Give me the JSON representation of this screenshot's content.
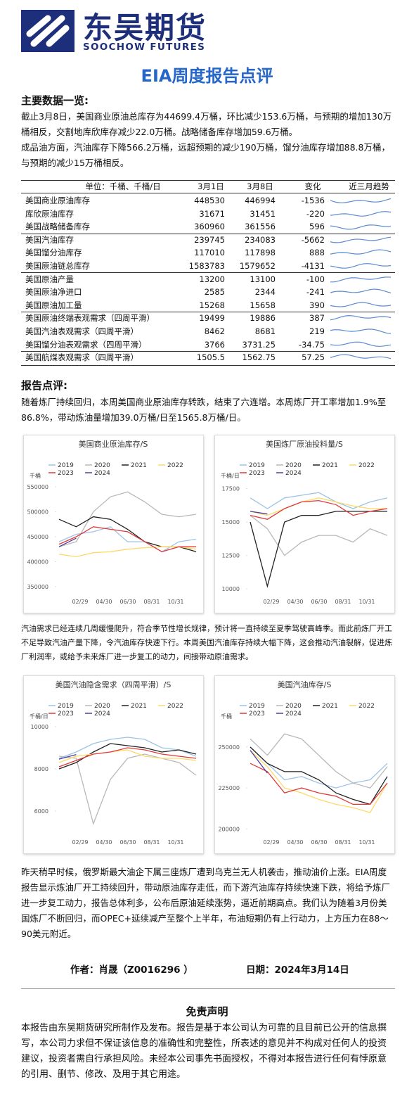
{
  "header": {
    "logo_cn": "东吴期货",
    "logo_en": "SOOCHOW FUTURES",
    "title": "EIA周度报告点评"
  },
  "summary": {
    "heading": "主要数据一览:",
    "paragraphs": [
      "截止3月8日，美国商业原油总库存为44699.4万桶，环比减少153.6万桶，与预期的增加130万桶相反，交割地库欣库存减少22.0万桶。战略储备库存增加59.6万桶。",
      "成品油方面，汽油库存下降566.2万桶，远超预期的减少190万桶，馏分油库存增加88.8万桶，与预期的减少15万桶相反。"
    ]
  },
  "table": {
    "columns": [
      "单位：千桶、千桶/日",
      "3月1日",
      "3月8日",
      "变化",
      "近三月趋势"
    ],
    "rows": [
      [
        "美国商业原油库存",
        448530,
        446994,
        -1536
      ],
      [
        "库欣原油库存",
        31671,
        31451,
        -220
      ],
      [
        "美国战略储备库存",
        360960,
        361556,
        596
      ],
      [
        "美国汽油库存",
        239745,
        234083,
        -5662
      ],
      [
        "美国馏分油库存",
        117010,
        117898,
        888
      ],
      [
        "美国原油链总库存",
        1583783,
        1579652,
        -4131
      ],
      [
        "美国原油产量",
        13200,
        13100,
        -100
      ],
      [
        "美国原油净进口",
        2585,
        2344,
        -241
      ],
      [
        "美国原油加工量",
        15268,
        15658,
        390
      ],
      [
        "美国原油终端表观需求（四周平滑）",
        19499,
        19886,
        387
      ],
      [
        "美国汽油表观需求（四周平滑）",
        8462,
        8681,
        219
      ],
      [
        "美国馏分油表观需求（四周平滑）",
        3766,
        3731.25,
        -34.75
      ],
      [
        "美国航煤表观需求（四周平滑）",
        1505.5,
        1562.75,
        57.25
      ]
    ]
  },
  "comment": {
    "heading": "报告点评:",
    "paragraphs": [
      "随着炼厂持续回归，本周美国商业原油库存转跌，结束了六连增。本周炼厂开工率增加1.9%至86.8%，带动炼油量增加39.0万桶/日至1565.8万桶/日。",
      "汽油需求已经连续几周缓慢爬升，符合季节性增长规律，预计将一直持续至夏季驾驶高峰季。而此前炼厂开工不足导致汽油产量下降，令汽油库存快速下行。本周美国汽油库存持续大幅下降，这会推动汽油裂解，促进炼厂利润率，或给予未来炼厂进一步复工的动力，间接带动原油需求。",
      "昨天稍早时候，俄罗斯最大油企下属三座炼厂遭到乌克兰无人机袭击，推动油价上涨。EIA周度报告显示炼油厂开工持续回升，带动原油库存走低，而下游汽油库存持续快速下跌，将给予炼厂进一步复工动力，报告总体利多，公布后原油延续涨势，逼近前期高点。我们认为随着3月份美国炼厂不断回归，而OPEC+延续减产至整个上半年，布油短期仍有上行动力，上方压力在88～90美元附近。"
    ]
  },
  "charts": [
    {
      "type": "line",
      "title": "美国商业原油库存/S",
      "unit": "千桶",
      "ylim": [
        340000,
        560000
      ],
      "yticks": [
        350000,
        400000,
        450000,
        500000,
        550000
      ],
      "xticks": [
        "02/29",
        "04/30",
        "06/30",
        "08/31",
        "10/31"
      ],
      "series": [
        {
          "name": "2019",
          "color": "#9dc3e6",
          "values": [
            440000,
            455000,
            460000,
            470000,
            440000,
            440000,
            420000,
            440000,
            445000
          ]
        },
        {
          "name": "2020",
          "color": "#b8b8b8",
          "values": [
            430000,
            440000,
            500000,
            530000,
            540000,
            520000,
            495000,
            490000,
            495000
          ]
        },
        {
          "name": "2021",
          "color": "#222222",
          "values": [
            485000,
            470000,
            490000,
            485000,
            465000,
            440000,
            430000,
            430000,
            420000
          ]
        },
        {
          "name": "2022",
          "color": "#ffd966",
          "values": [
            415000,
            410000,
            418000,
            420000,
            425000,
            428000,
            430000,
            430000,
            425000
          ]
        },
        {
          "name": "2023",
          "color": "#e03a3a",
          "values": [
            435000,
            450000,
            470000,
            465000,
            460000,
            440000,
            420000,
            430000,
            430000
          ]
        },
        {
          "name": "2024",
          "color": "#4b3f9a",
          "values": [
            430000,
            447000,
            null,
            null,
            null,
            null,
            null,
            null,
            null
          ]
        }
      ]
    },
    {
      "type": "line",
      "title": "美国炼厂原油投料量/S",
      "unit": "千桶/日",
      "ylim": [
        9800,
        18000
      ],
      "yticks": [
        10000,
        12500,
        15000,
        17500
      ],
      "xticks": [
        "02/29",
        "04/30",
        "06/30",
        "08/31",
        "10/31"
      ],
      "series": [
        {
          "name": "2019",
          "color": "#9dc3e6",
          "values": [
            16800,
            16000,
            16800,
            17000,
            17200,
            16500,
            16000,
            16500,
            16800
          ]
        },
        {
          "name": "2020",
          "color": "#b8b8b8",
          "values": [
            15500,
            14500,
            12500,
            13500,
            14000,
            14000,
            13500,
            14500,
            14000
          ]
        },
        {
          "name": "2021",
          "color": "#222222",
          "values": [
            15000,
            10200,
            15000,
            15500,
            15500,
            15800,
            15800,
            15800,
            15800
          ]
        },
        {
          "name": "2022",
          "color": "#ffd966",
          "values": [
            15800,
            15500,
            16000,
            16500,
            16800,
            16500,
            16200,
            16000,
            16000
          ]
        },
        {
          "name": "2023",
          "color": "#e03a3a",
          "values": [
            15500,
            15200,
            16000,
            16500,
            16600,
            16300,
            15500,
            15800,
            16000
          ]
        },
        {
          "name": "2024",
          "color": "#4b3f9a",
          "values": [
            15800,
            15600,
            null,
            null,
            null,
            null,
            null,
            null,
            null
          ]
        }
      ]
    },
    {
      "type": "line",
      "title": "美国汽油隐含需求（四周平滑）/S",
      "unit": "千桶/日",
      "ylim": [
        5000,
        10200
      ],
      "yticks": [
        6000,
        8000,
        10000
      ],
      "xticks": [
        "02/29",
        "04/30",
        "06/30",
        "08/31",
        "10/31"
      ],
      "series": [
        {
          "name": "2019",
          "color": "#9dc3e6",
          "values": [
            8500,
            8800,
            9200,
            9400,
            9500,
            9400,
            9000,
            8900,
            8600
          ]
        },
        {
          "name": "2020",
          "color": "#b8b8b8",
          "values": [
            8600,
            8500,
            5400,
            7500,
            8500,
            8700,
            8500,
            8300,
            7700
          ]
        },
        {
          "name": "2021",
          "color": "#222222",
          "values": [
            8000,
            8300,
            8800,
            9200,
            9100,
            9000,
            8800,
            8900,
            8700
          ]
        },
        {
          "name": "2022",
          "color": "#ffd966",
          "values": [
            8300,
            8600,
            8700,
            8800,
            8900,
            8600,
            8500,
            8500,
            8400
          ]
        },
        {
          "name": "2023",
          "color": "#e03a3a",
          "values": [
            8100,
            8400,
            8700,
            8800,
            9000,
            8900,
            8700,
            8600,
            8500
          ]
        },
        {
          "name": "2024",
          "color": "#4b3f9a",
          "values": [
            8462,
            8681,
            null,
            null,
            null,
            null,
            null,
            null,
            null
          ]
        }
      ]
    },
    {
      "type": "line",
      "title": "美国汽油库存/S",
      "unit": "千桶",
      "ylim": [
        198000,
        265000
      ],
      "yticks": [
        200000,
        225000,
        250000
      ],
      "xticks": [
        "02/29",
        "04/30",
        "06/30",
        "08/31",
        "10/31"
      ],
      "series": [
        {
          "name": "2019",
          "color": "#9dc3e6",
          "values": [
            250000,
            240000,
            230000,
            232000,
            228000,
            225000,
            228000,
            230000,
            240000
          ]
        },
        {
          "name": "2020",
          "color": "#b8b8b8",
          "values": [
            255000,
            245000,
            258000,
            255000,
            245000,
            235000,
            228000,
            225000,
            238000
          ]
        },
        {
          "name": "2021",
          "color": "#222222",
          "values": [
            250000,
            240000,
            235000,
            235000,
            230000,
            222000,
            218000,
            215000,
            232000
          ]
        },
        {
          "name": "2022",
          "color": "#ffd966",
          "values": [
            248000,
            238000,
            225000,
            222000,
            218000,
            215000,
            213000,
            210000,
            228000
          ]
        },
        {
          "name": "2023",
          "color": "#e03a3a",
          "values": [
            240000,
            235000,
            222000,
            225000,
            222000,
            220000,
            215000,
            215000,
            228000
          ]
        },
        {
          "name": "2024",
          "color": "#4b3f9a",
          "values": [
            248000,
            234083,
            null,
            null,
            null,
            null,
            null,
            null,
            null
          ]
        }
      ]
    }
  ],
  "footer": {
    "author": "作者：肖晟（Z0016296 ）",
    "date": "日期：2024年3月14日",
    "disclaimer_heading": "免责声明",
    "disclaimer": "本报告由东吴期货研究所制作及发布。报告是基于本公司认为可靠的且目前已公开的信息撰写，本公司力求但不保证该信息的准确性和完整性，所表述的意见并不构成对任何人的投资建议，投资者需自行承担风险。未经本公司事先书面授权，不得对本报告进行任何有悖原意的引用、删节、修改、及用于其它用途。"
  }
}
